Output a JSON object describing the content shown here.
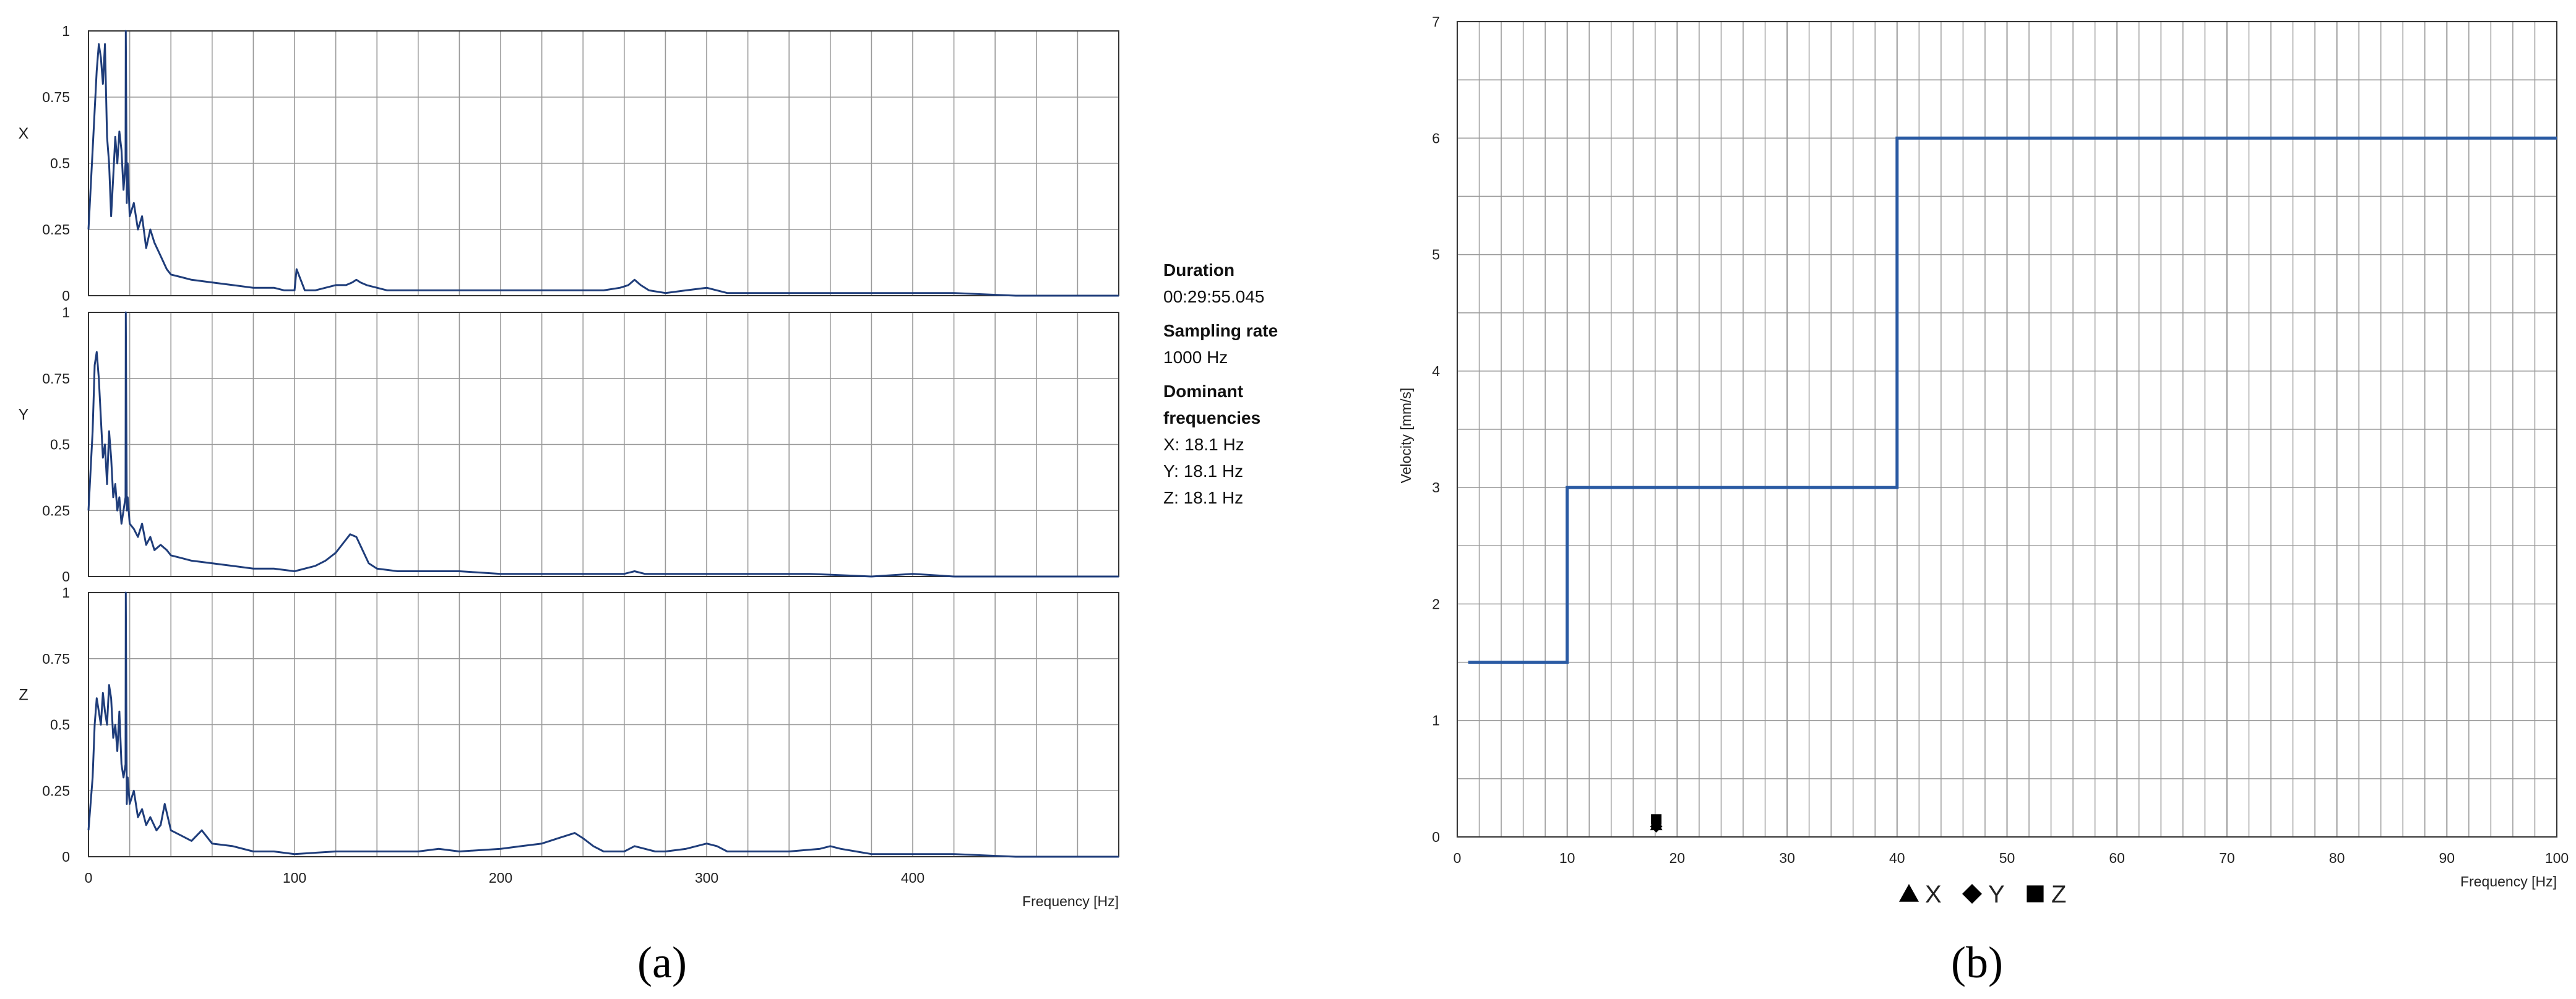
{
  "figure": {
    "label_a": "(a)",
    "label_b": "(b)"
  },
  "info": {
    "duration_label": "Duration",
    "duration_value": "00:29:55.045",
    "sampling_label": "Sampling rate",
    "sampling_value": "1000 Hz",
    "dominant_label_line1": "Dominant",
    "dominant_label_line2": "frequencies",
    "dominant_x": "X: 18.1 Hz",
    "dominant_y": "Y: 18.1 Hz",
    "dominant_z": "Z: 18.1 Hz"
  },
  "colors": {
    "line": "#1f3d7a",
    "step": "#2a5aa3",
    "grid": "#9a9a9a",
    "axis": "#333333"
  },
  "chart_data": [
    {
      "type": "line",
      "id": "fft-x",
      "ylabel": "X",
      "xlabel": "",
      "xlim": [
        0,
        500
      ],
      "ylim": [
        0,
        1
      ],
      "x_ticks": [],
      "y_ticks": [
        "0",
        "0.25",
        "0.5",
        "0.75",
        "1"
      ],
      "grid": true,
      "series": [
        {
          "x": [
            0,
            2,
            4,
            5,
            6,
            7,
            8,
            9,
            10,
            11,
            12,
            13,
            14,
            15,
            16,
            17,
            18,
            18.1,
            18.6,
            19,
            20,
            22,
            24,
            26,
            28,
            30,
            32,
            35,
            38,
            40,
            45,
            50,
            60,
            70,
            80,
            90,
            95,
            100,
            101,
            105,
            110,
            115,
            120,
            125,
            128,
            130,
            132,
            135,
            140,
            145,
            150,
            160,
            180,
            200,
            220,
            240,
            250,
            258,
            262,
            265,
            268,
            272,
            280,
            290,
            300,
            305,
            310,
            330,
            350,
            380,
            400,
            420,
            450,
            500
          ],
          "y": [
            0.25,
            0.55,
            0.85,
            0.95,
            0.9,
            0.8,
            0.95,
            0.6,
            0.5,
            0.3,
            0.45,
            0.6,
            0.5,
            0.62,
            0.55,
            0.4,
            0.5,
            1.0,
            0.35,
            0.5,
            0.3,
            0.35,
            0.25,
            0.3,
            0.18,
            0.25,
            0.2,
            0.15,
            0.1,
            0.08,
            0.07,
            0.06,
            0.05,
            0.04,
            0.03,
            0.03,
            0.02,
            0.02,
            0.1,
            0.02,
            0.02,
            0.03,
            0.04,
            0.04,
            0.05,
            0.06,
            0.05,
            0.04,
            0.03,
            0.02,
            0.02,
            0.02,
            0.02,
            0.02,
            0.02,
            0.02,
            0.02,
            0.03,
            0.04,
            0.06,
            0.04,
            0.02,
            0.01,
            0.02,
            0.03,
            0.02,
            0.01,
            0.01,
            0.01,
            0.01,
            0.01,
            0.01,
            0.0,
            0.0
          ]
        }
      ]
    },
    {
      "type": "line",
      "id": "fft-y",
      "ylabel": "Y",
      "xlabel": "",
      "xlim": [
        0,
        500
      ],
      "ylim": [
        0,
        1
      ],
      "x_ticks": [],
      "y_ticks": [
        "0",
        "0.25",
        "0.5",
        "0.75",
        "1"
      ],
      "grid": true,
      "series": [
        {
          "x": [
            0,
            2,
            3,
            4,
            5,
            6,
            7,
            8,
            9,
            10,
            11,
            12,
            13,
            14,
            15,
            16,
            17,
            18,
            18.1,
            18.6,
            19,
            20,
            22,
            24,
            26,
            28,
            30,
            32,
            35,
            38,
            40,
            45,
            50,
            60,
            70,
            80,
            90,
            100,
            110,
            115,
            120,
            124,
            127,
            130,
            133,
            136,
            140,
            150,
            160,
            180,
            200,
            220,
            240,
            260,
            265,
            270,
            280,
            300,
            320,
            350,
            380,
            400,
            420,
            450,
            500
          ],
          "y": [
            0.25,
            0.55,
            0.8,
            0.85,
            0.75,
            0.6,
            0.45,
            0.5,
            0.35,
            0.55,
            0.45,
            0.3,
            0.35,
            0.25,
            0.3,
            0.2,
            0.25,
            0.3,
            1.0,
            0.25,
            0.3,
            0.2,
            0.18,
            0.15,
            0.2,
            0.12,
            0.15,
            0.1,
            0.12,
            0.1,
            0.08,
            0.07,
            0.06,
            0.05,
            0.04,
            0.03,
            0.03,
            0.02,
            0.04,
            0.06,
            0.09,
            0.13,
            0.16,
            0.15,
            0.1,
            0.05,
            0.03,
            0.02,
            0.02,
            0.02,
            0.01,
            0.01,
            0.01,
            0.01,
            0.02,
            0.01,
            0.01,
            0.01,
            0.01,
            0.01,
            0.0,
            0.01,
            0.0,
            0.0,
            0.0
          ]
        }
      ]
    },
    {
      "type": "line",
      "id": "fft-z",
      "ylabel": "Z",
      "xlabel": "Frequency [Hz]",
      "xlim": [
        0,
        500
      ],
      "ylim": [
        0,
        1
      ],
      "x_ticks": [
        "0",
        "100",
        "200",
        "300",
        "400"
      ],
      "x_tick_values": [
        0,
        100,
        200,
        300,
        400
      ],
      "y_ticks": [
        "0",
        "0.25",
        "0.5",
        "0.75",
        "1"
      ],
      "grid": true,
      "series": [
        {
          "x": [
            0,
            2,
            3,
            4,
            5,
            6,
            7,
            8,
            9,
            10,
            11,
            12,
            13,
            14,
            15,
            16,
            17,
            18,
            18.1,
            18.6,
            19,
            20,
            22,
            24,
            26,
            28,
            30,
            33,
            35,
            37,
            40,
            45,
            50,
            55,
            60,
            70,
            80,
            90,
            100,
            120,
            140,
            160,
            170,
            180,
            200,
            210,
            220,
            228,
            232,
            236,
            240,
            245,
            250,
            260,
            265,
            270,
            275,
            280,
            290,
            300,
            305,
            310,
            320,
            340,
            355,
            360,
            365,
            380,
            400,
            420,
            450,
            500
          ],
          "y": [
            0.1,
            0.3,
            0.5,
            0.6,
            0.55,
            0.5,
            0.62,
            0.55,
            0.5,
            0.65,
            0.6,
            0.45,
            0.5,
            0.4,
            0.55,
            0.35,
            0.3,
            0.35,
            1.0,
            0.2,
            0.3,
            0.2,
            0.25,
            0.15,
            0.18,
            0.12,
            0.15,
            0.1,
            0.12,
            0.2,
            0.1,
            0.08,
            0.06,
            0.1,
            0.05,
            0.04,
            0.02,
            0.02,
            0.01,
            0.02,
            0.02,
            0.02,
            0.03,
            0.02,
            0.03,
            0.04,
            0.05,
            0.07,
            0.08,
            0.09,
            0.07,
            0.04,
            0.02,
            0.02,
            0.04,
            0.03,
            0.02,
            0.02,
            0.03,
            0.05,
            0.04,
            0.02,
            0.02,
            0.02,
            0.03,
            0.04,
            0.03,
            0.01,
            0.01,
            0.01,
            0.0,
            0.0
          ]
        }
      ]
    },
    {
      "type": "line",
      "id": "velocity-limit",
      "xlabel": "Frequency [Hz]",
      "ylabel": "Velocity [mm/s]",
      "xlim": [
        0,
        100
      ],
      "ylim": [
        0,
        7
      ],
      "x_ticks": [
        "0",
        "10",
        "20",
        "30",
        "40",
        "50",
        "60",
        "70",
        "80",
        "90",
        "100"
      ],
      "x_tick_values": [
        0,
        10,
        20,
        30,
        40,
        50,
        60,
        70,
        80,
        90,
        100
      ],
      "y_ticks": [
        "0",
        "1",
        "2",
        "3",
        "4",
        "5",
        "6",
        "7"
      ],
      "y_tick_values": [
        0,
        1,
        2,
        3,
        4,
        5,
        6,
        7
      ],
      "grid": true,
      "minor_grid_step": 2,
      "legend": {
        "position": "bottom-center",
        "entries": [
          "X",
          "Y",
          "Z"
        ]
      },
      "series": [
        {
          "x": [
            1,
            10,
            10,
            40,
            40,
            100
          ],
          "y": [
            1.5,
            1.5,
            3,
            3,
            6,
            6
          ]
        }
      ],
      "markers": [
        {
          "name": "X",
          "shape": "triangle",
          "x": 18.1,
          "y": 0.1
        },
        {
          "name": "Y",
          "shape": "diamond",
          "x": 18.1,
          "y": 0.09
        },
        {
          "name": "Z",
          "shape": "square",
          "x": 18.1,
          "y": 0.15
        }
      ]
    }
  ]
}
